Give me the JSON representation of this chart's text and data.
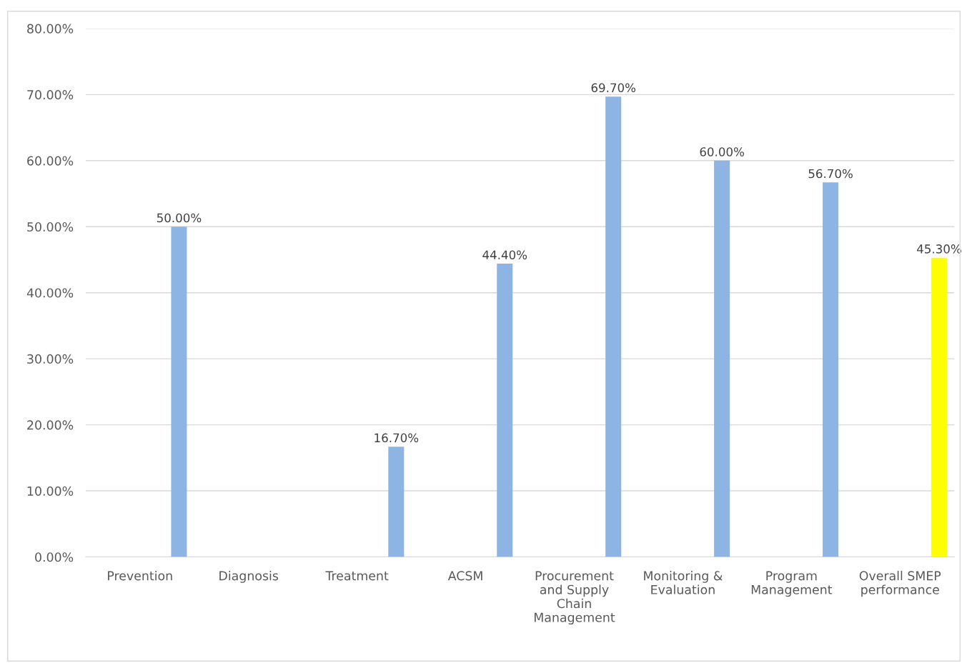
{
  "chart_data": {
    "type": "bar",
    "categories": [
      "Prevention",
      "Diagnosis",
      "Treatment",
      "ACSM",
      "Procurement and Supply Chain Management",
      "Monitoring & Evaluation",
      "Program Management",
      "Overall SMEP performance"
    ],
    "values": [
      50.0,
      null,
      16.7,
      44.4,
      69.7,
      60.0,
      56.7,
      45.3
    ],
    "colors": [
      "#8eb4e3",
      "#8eb4e3",
      "#8eb4e3",
      "#8eb4e3",
      "#8eb4e3",
      "#8eb4e3",
      "#8eb4e3",
      "#ffff00"
    ],
    "value_labels": [
      "50.00%",
      null,
      "16.70%",
      "44.40%",
      "69.70%",
      "60.00%",
      "56.70%",
      "45.30%"
    ],
    "ylim": [
      0,
      80
    ],
    "yticks": [
      {
        "value": 0,
        "label": "0.00%"
      },
      {
        "value": 10,
        "label": "10.00%"
      },
      {
        "value": 20,
        "label": "20.00%"
      },
      {
        "value": 30,
        "label": "30.00%"
      },
      {
        "value": 40,
        "label": "40.00%"
      },
      {
        "value": 50,
        "label": "50.00%"
      },
      {
        "value": 60,
        "label": "60.00%"
      },
      {
        "value": 70,
        "label": "70.00%"
      },
      {
        "value": 80,
        "label": "80.00%"
      }
    ],
    "grid": "y",
    "legend": false
  }
}
